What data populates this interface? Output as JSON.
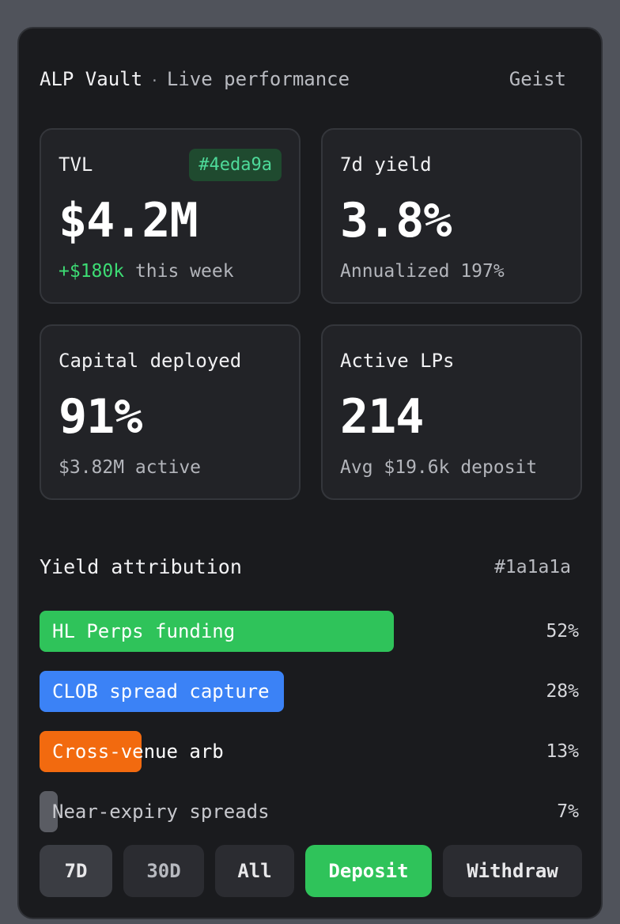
{
  "header": {
    "title": "ALP Vault",
    "separator": "·",
    "subtitle": "Live performance",
    "brand": "Geist"
  },
  "stats": [
    {
      "label": "TVL",
      "value": "$4.2M",
      "badge": "#4eda9a",
      "foot_highlight": "+$180k",
      "foot": " this week"
    },
    {
      "label": "7d yield",
      "value": "3.8%",
      "foot": "Annualized 197%"
    },
    {
      "label": "Capital deployed",
      "value": "91%",
      "foot": "$3.82M active"
    },
    {
      "label": "Active LPs",
      "value": "214",
      "foot": "Avg $19.6k deposit"
    }
  ],
  "attribution": {
    "title": "Yield attribution",
    "tag": "#1a1a1a",
    "items": [
      {
        "label": "HL Perps funding",
        "pct_text": "52%",
        "fraction": 0.69,
        "color": "#2fc35a"
      },
      {
        "label": "CLOB spread capture",
        "pct_text": "28%",
        "fraction": 0.475,
        "color": "#3b82f6"
      },
      {
        "label": "Cross-venue arb",
        "pct_text": "13%",
        "fraction": 0.198,
        "color": "#f26a0f"
      },
      {
        "label": "Near-expiry spreads",
        "pct_text": "7%",
        "fraction": 0.035,
        "color": "#5a5c63"
      }
    ]
  },
  "buttons": {
    "range_7d": "7D",
    "range_30d": "30D",
    "range_all": "All",
    "deposit": "Deposit",
    "withdraw": "Withdraw"
  }
}
